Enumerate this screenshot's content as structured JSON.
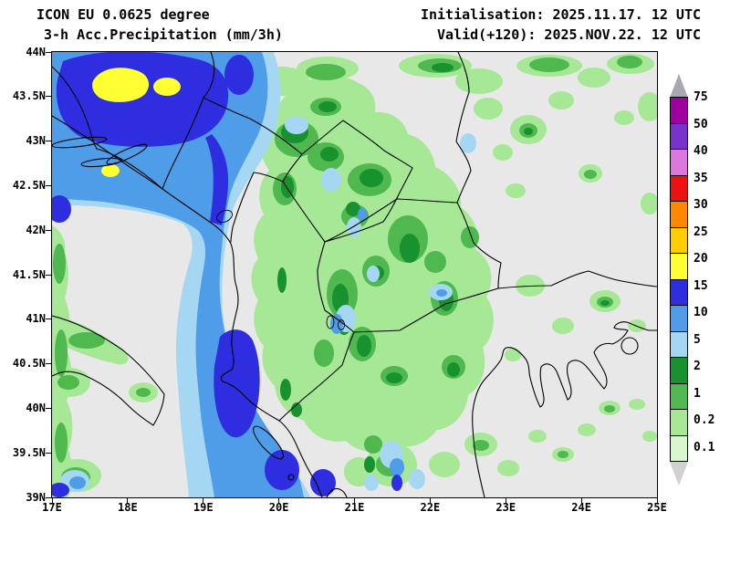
{
  "header": {
    "model": "ICON EU 0.0625 degree",
    "product": "3-h Acc.Precipitation (mm/3h)",
    "initialisation": "Initialisation: 2025.11.17. 12 UTC",
    "valid": "Valid(+120): 2025.NOV.22. 12 UTC"
  },
  "axes": {
    "lat_labels": [
      "44N",
      "43.5N",
      "43N",
      "42.5N",
      "42N",
      "41.5N",
      "41N",
      "40.5N",
      "40N",
      "39.5N",
      "39N"
    ],
    "lon_labels": [
      "17E",
      "18E",
      "19E",
      "20E",
      "21E",
      "22E",
      "23E",
      "24E",
      "25E"
    ]
  },
  "legend": {
    "boundary_labels": [
      "75",
      "50",
      "40",
      "35",
      "30",
      "25",
      "20",
      "15",
      "10",
      "5",
      "2",
      "1",
      "0.2",
      "0.1"
    ],
    "box_colors": [
      "#a000a0",
      "#7733cc",
      "#dd77dd",
      "#ee1111",
      "#ff8800",
      "#ffcc00",
      "#ffff33",
      "#2e2ee0",
      "#4f9ce8",
      "#a6d7f2",
      "#18922e",
      "#4fb84f",
      "#a6e896"
    ],
    "top_arrow_color": "#a8a8b0",
    "below_box_color": "#d9f7cc",
    "bottom_arrow_color": "#d0d0d0"
  },
  "palette": {
    "land": "#e8e8e8",
    "r0p1_0p2": "#a6e896",
    "r0p2_1": "#4fb84f",
    "r1_2": "#18922e",
    "r2_5": "#a6d7f2",
    "r5_10": "#4f9ce8",
    "r10_15": "#2e2ee0",
    "r15_20": "#ffff33"
  }
}
